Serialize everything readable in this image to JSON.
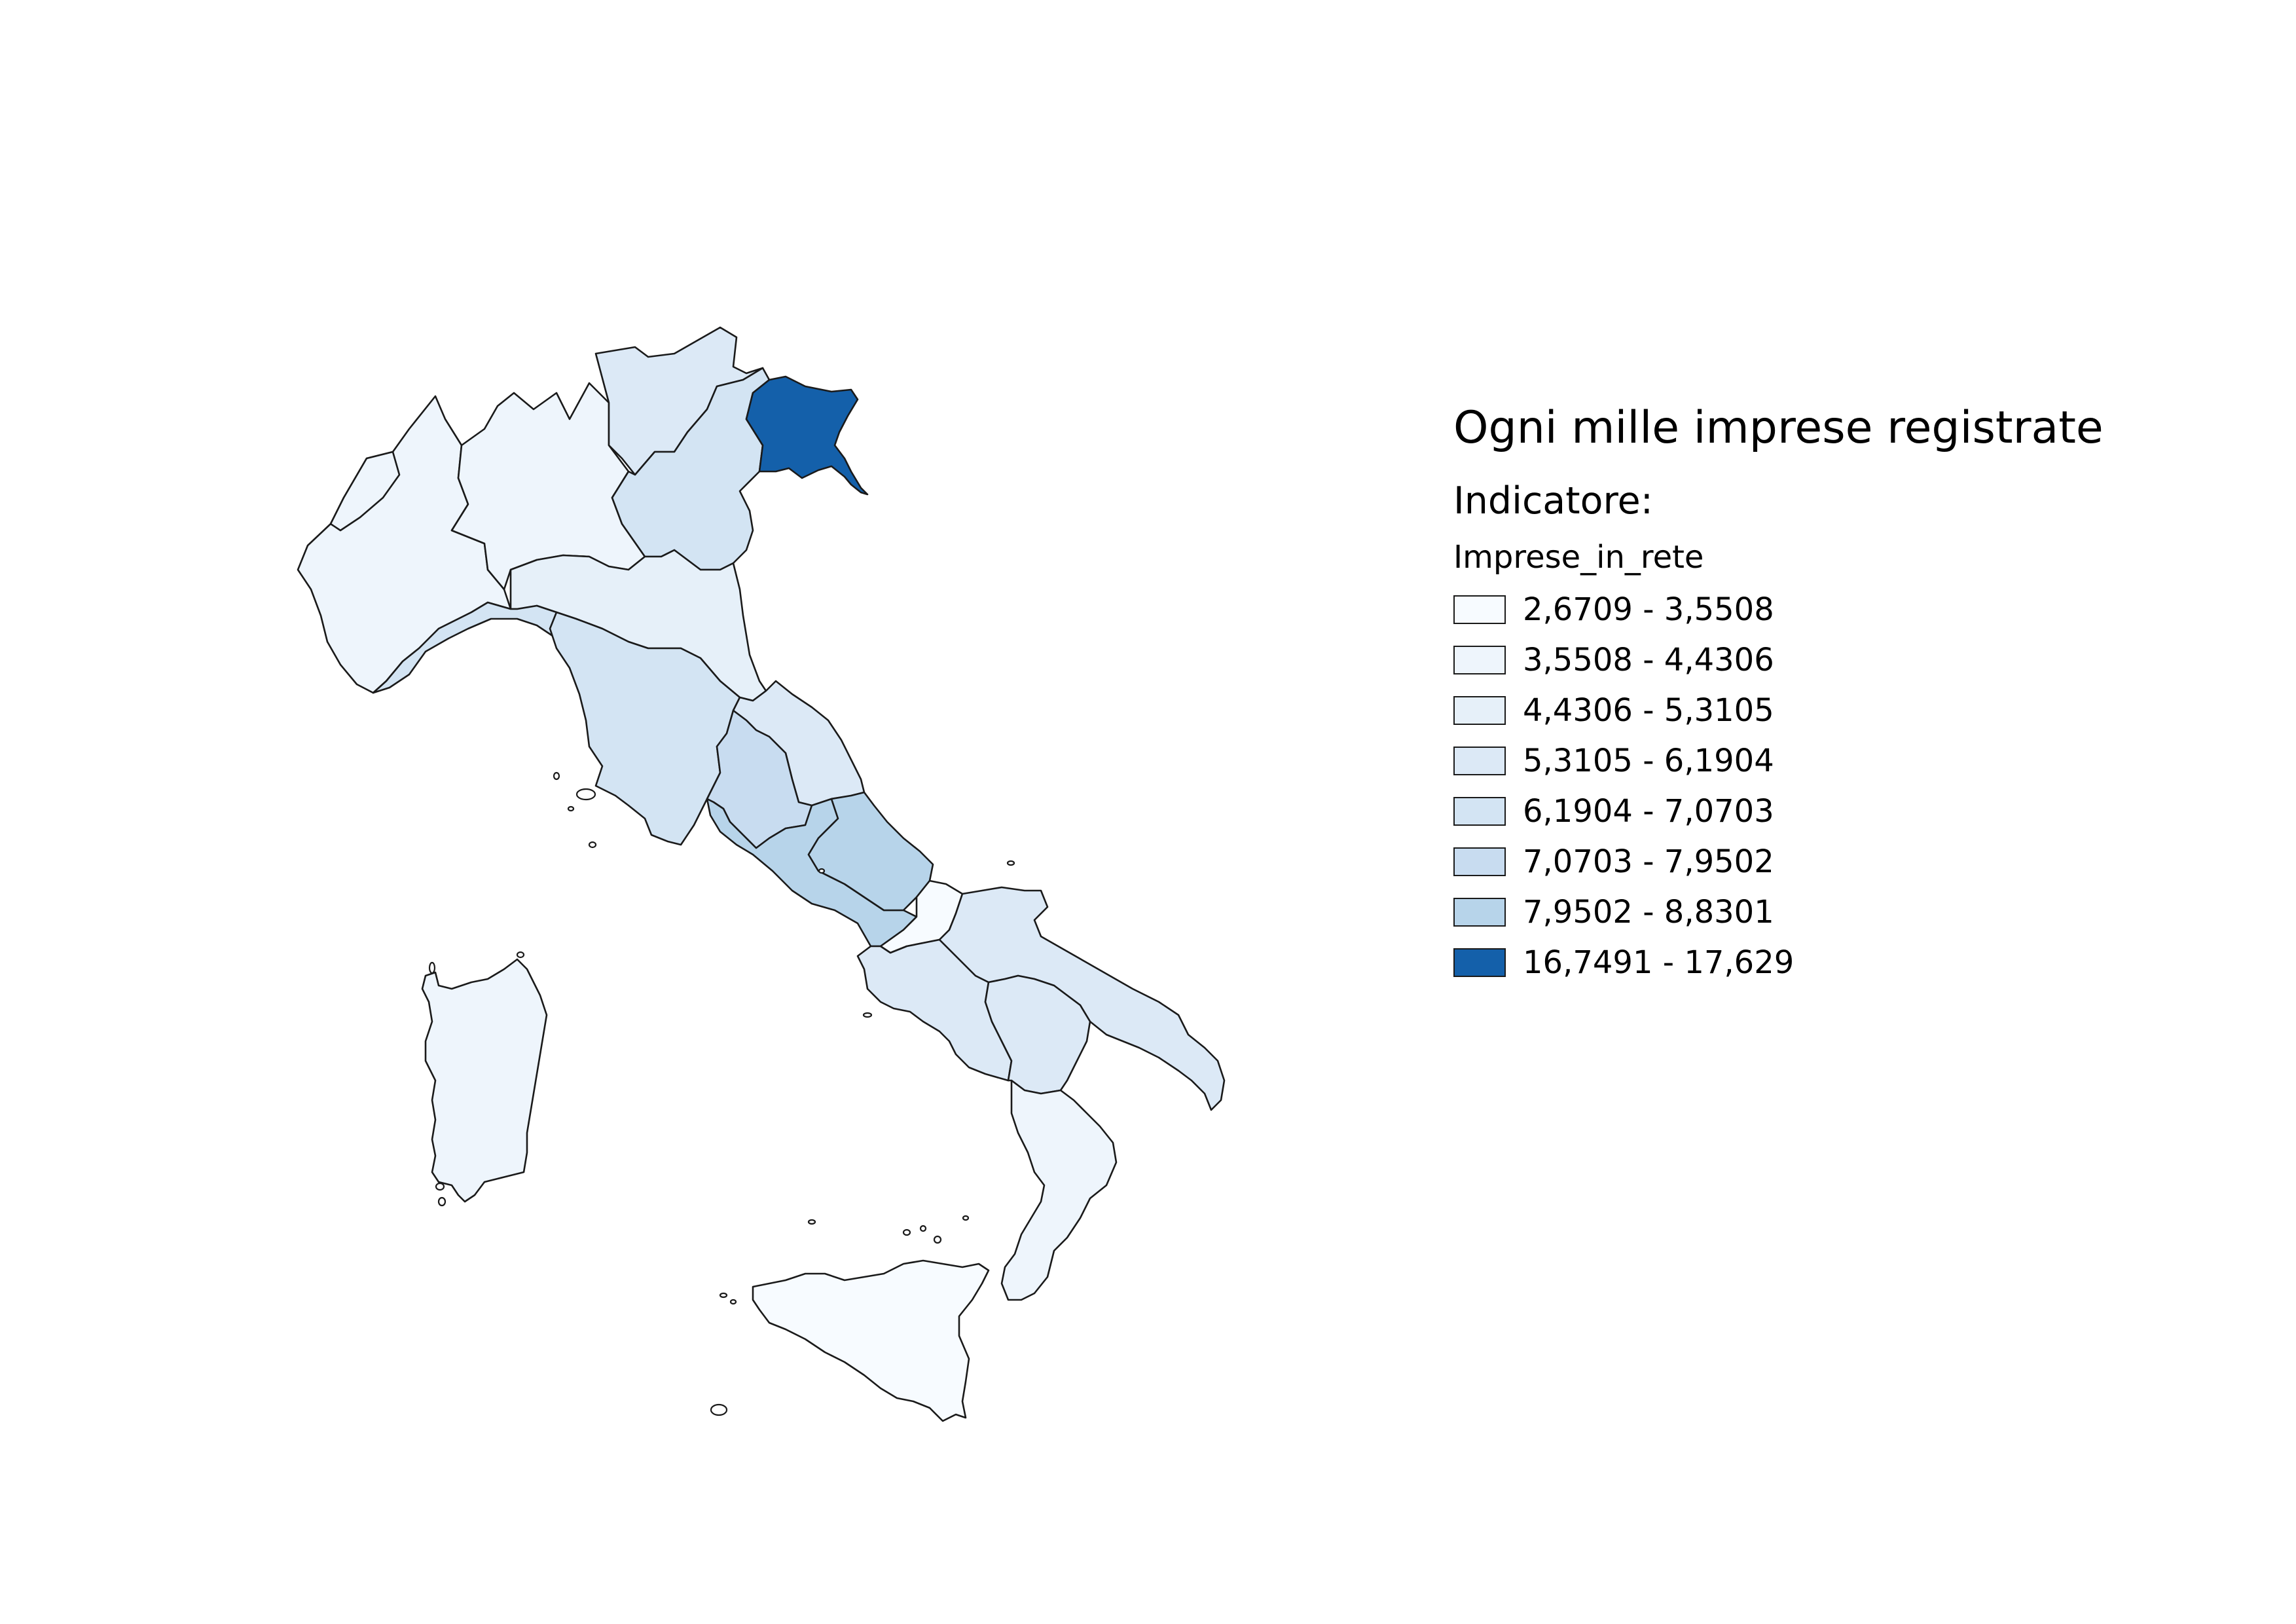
{
  "map": {
    "legend": {
      "title": "Ogni mille imprese registrate",
      "subtitle": "Indicatore:",
      "field": "Imprese_in_rete",
      "classes": [
        {
          "label": "2,6709 - 3,5508",
          "color": "#f7fbff"
        },
        {
          "label": "3,5508 - 4,4306",
          "color": "#eef5fc"
        },
        {
          "label": "4,4306 - 5,3105",
          "color": "#e6f0f9"
        },
        {
          "label": "5,3105 - 6,1904",
          "color": "#dce9f6"
        },
        {
          "label": "6,1904 - 7,0703",
          "color": "#d3e4f3"
        },
        {
          "label": "7,0703 - 7,9502",
          "color": "#c8dcf0"
        },
        {
          "label": "7,9502 - 8,8301",
          "color": "#b7d4ea"
        },
        {
          "label": "16,7491 - 17,629",
          "color": "#1460aa"
        }
      ]
    },
    "regions": [
      {
        "id": "piemonte",
        "class": 1
      },
      {
        "id": "valle-aosta",
        "class": 1
      },
      {
        "id": "lombardia",
        "class": 1
      },
      {
        "id": "trentino-alto-adige",
        "class": 3
      },
      {
        "id": "veneto",
        "class": 4
      },
      {
        "id": "friuli-venezia-giulia",
        "class": 7
      },
      {
        "id": "liguria",
        "class": 4
      },
      {
        "id": "emilia-romagna",
        "class": 2
      },
      {
        "id": "toscana",
        "class": 4
      },
      {
        "id": "marche",
        "class": 3
      },
      {
        "id": "umbria",
        "class": 5
      },
      {
        "id": "lazio",
        "class": 6
      },
      {
        "id": "abruzzo",
        "class": 6
      },
      {
        "id": "molise",
        "class": 0
      },
      {
        "id": "campania",
        "class": 3
      },
      {
        "id": "puglia",
        "class": 3
      },
      {
        "id": "basilicata",
        "class": 3
      },
      {
        "id": "calabria",
        "class": 1
      },
      {
        "id": "sicilia",
        "class": 0
      },
      {
        "id": "sardegna",
        "class": 1
      }
    ]
  }
}
